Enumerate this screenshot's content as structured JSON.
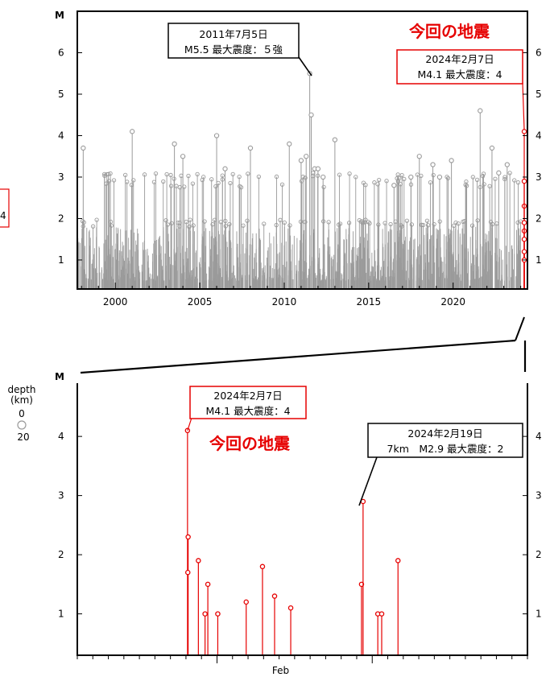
{
  "colors": {
    "grey": "#9a9a9a",
    "red": "#e60000",
    "axis": "#000000"
  },
  "left_edge_text": "4",
  "depth_legend": {
    "title": "depth",
    "unit": "(km)",
    "values": [
      "0",
      "20"
    ]
  },
  "chart_data": [
    {
      "type": "scatter",
      "style": "stem",
      "ylabel": "M",
      "xlim": [
        1997.75,
        2024.4
      ],
      "ylim": [
        0.3,
        7.0
      ],
      "xticks": [
        "2000",
        "2005",
        "2010",
        "2015",
        "2020"
      ],
      "yticks": [
        "1",
        "2",
        "3",
        "4",
        "5",
        "6"
      ],
      "notable": [
        {
          "x": 2004.0,
          "y": 3.5
        },
        {
          "x": 2003.5,
          "y": 3.8
        },
        {
          "x": 2006.0,
          "y": 4.0
        },
        {
          "x": 2006.5,
          "y": 3.2
        },
        {
          "x": 2008.0,
          "y": 3.7
        },
        {
          "x": 2010.3,
          "y": 3.8
        },
        {
          "x": 2011.0,
          "y": 3.4
        },
        {
          "x": 2011.3,
          "y": 3.5
        },
        {
          "x": 2011.51,
          "y": 5.5
        },
        {
          "x": 2011.6,
          "y": 4.5
        },
        {
          "x": 2011.8,
          "y": 3.2
        },
        {
          "x": 2012.0,
          "y": 3.2
        },
        {
          "x": 2012.3,
          "y": 3.0
        },
        {
          "x": 2013.0,
          "y": 3.9
        },
        {
          "x": 2016.5,
          "y": 2.8
        },
        {
          "x": 2017.5,
          "y": 3.0
        },
        {
          "x": 2018.0,
          "y": 3.5
        },
        {
          "x": 2018.8,
          "y": 3.3
        },
        {
          "x": 2019.2,
          "y": 3.0
        },
        {
          "x": 2019.9,
          "y": 3.4
        },
        {
          "x": 2021.6,
          "y": 4.6
        },
        {
          "x": 2022.3,
          "y": 3.7
        },
        {
          "x": 2022.7,
          "y": 3.1
        },
        {
          "x": 2023.2,
          "y": 3.3
        },
        {
          "x": 2001.0,
          "y": 4.1
        },
        {
          "x": 1998.1,
          "y": 3.7
        }
      ],
      "highlight_series": [
        {
          "x": 2024.1,
          "y": 4.1
        },
        {
          "x": 2024.1,
          "y": 2.3
        },
        {
          "x": 2024.1,
          "y": 1.7
        },
        {
          "x": 2024.14,
          "y": 2.9
        },
        {
          "x": 2024.12,
          "y": 1.9
        },
        {
          "x": 2024.12,
          "y": 1.5
        },
        {
          "x": 2024.13,
          "y": 1.2
        },
        {
          "x": 2024.15,
          "y": 1.0
        }
      ],
      "annotations": [
        {
          "line1": "2011年7月5日",
          "line2": "M5.5 最大震度：５強"
        },
        {
          "line1": "2024年2月7日",
          "line2": "M4.1 最大震度：4"
        }
      ],
      "callout": "今回の地震"
    },
    {
      "type": "scatter",
      "style": "stem",
      "ylabel": "M",
      "xlim": [
        0,
        29
      ],
      "ylim": [
        0.3,
        4.9
      ],
      "xticks": [
        "Feb"
      ],
      "yticks": [
        "1",
        "2",
        "3",
        "4"
      ],
      "points": [
        {
          "x": 7.1,
          "y": 4.1
        },
        {
          "x": 7.14,
          "y": 2.3
        },
        {
          "x": 7.12,
          "y": 1.7
        },
        {
          "x": 7.8,
          "y": 1.9
        },
        {
          "x": 8.23,
          "y": 1.0
        },
        {
          "x": 8.41,
          "y": 1.5
        },
        {
          "x": 9.05,
          "y": 1.0
        },
        {
          "x": 10.88,
          "y": 1.2
        },
        {
          "x": 11.93,
          "y": 1.8
        },
        {
          "x": 12.71,
          "y": 1.3
        },
        {
          "x": 13.75,
          "y": 1.1
        },
        {
          "x": 18.31,
          "y": 1.5
        },
        {
          "x": 18.41,
          "y": 2.9
        },
        {
          "x": 19.36,
          "y": 1.0
        },
        {
          "x": 19.61,
          "y": 1.0
        },
        {
          "x": 20.66,
          "y": 1.9
        }
      ],
      "annotations": [
        {
          "line1": "2024年2月7日",
          "line2": "M4.1 最大震度：4"
        },
        {
          "line1": "2024年2月19日",
          "line2": "7km　M2.9 最大震度：2"
        }
      ],
      "callout": "今回の地震"
    }
  ]
}
